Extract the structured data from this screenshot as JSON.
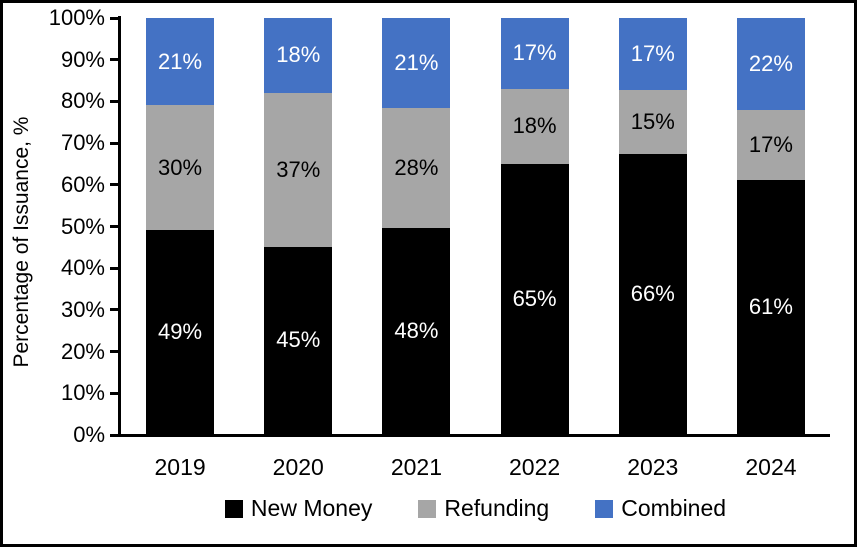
{
  "chart": {
    "background_color": "#FFFFFF",
    "border_color": "#000000",
    "axis_color": "#000000"
  },
  "chart_data": {
    "type": "bar",
    "stacked": true,
    "title": "",
    "xlabel": "",
    "ylabel": "Percentage of Issuance, %",
    "ylim": [
      0,
      100
    ],
    "yticks": [
      "0%",
      "10%",
      "20%",
      "30%",
      "40%",
      "50%",
      "60%",
      "70%",
      "80%",
      "90%",
      "100%"
    ],
    "grid": false,
    "legend_position": "bottom",
    "value_suffix": "%",
    "categories": [
      "2019",
      "2020",
      "2021",
      "2022",
      "2023",
      "2024"
    ],
    "series": [
      {
        "name": "New Money",
        "color": "#000000",
        "label_color": "#FFFFFF",
        "values": [
          49,
          45,
          48,
          65,
          66,
          61
        ]
      },
      {
        "name": "Refunding",
        "color": "#A6A6A6",
        "label_color": "#000000",
        "values": [
          30,
          37,
          28,
          18,
          15,
          17
        ]
      },
      {
        "name": "Combined",
        "color": "#4472C4",
        "label_color": "#FFFFFF",
        "values": [
          21,
          18,
          21,
          17,
          17,
          22
        ]
      }
    ]
  }
}
